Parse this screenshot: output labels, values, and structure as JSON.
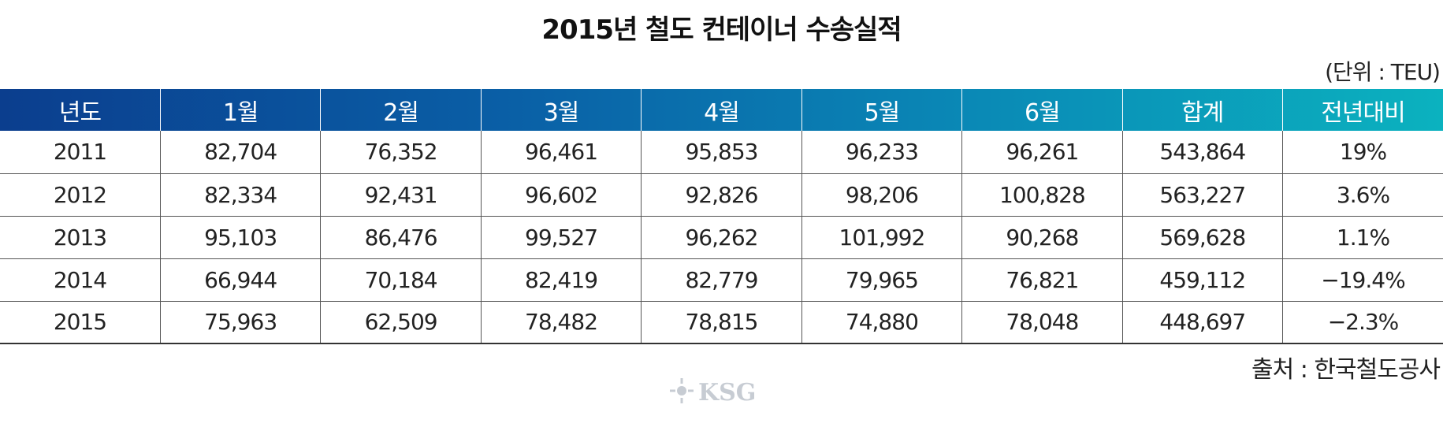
{
  "title": "2015년 철도 컨테이너 수송실적",
  "unit": "(단위 : TEU)",
  "source": "출처 : 한국철도공사",
  "watermark_text": "KSG",
  "colors": {
    "header_start": "#0b3e8e",
    "header_end": "#0bb2bf",
    "header_text": "#ffffff",
    "grid_line": "#555555"
  },
  "chart_data": {
    "type": "table",
    "title": "2015년 철도 컨테이너 수송실적",
    "columns": [
      "년도",
      "1월",
      "2월",
      "3월",
      "4월",
      "5월",
      "6월",
      "합계",
      "전년대비"
    ],
    "rows": [
      [
        "2011",
        "82,704",
        "76,352",
        "96,461",
        "95,853",
        "96,233",
        "96,261",
        "543,864",
        "19%"
      ],
      [
        "2012",
        "82,334",
        "92,431",
        "96,602",
        "92,826",
        "98,206",
        "100,828",
        "563,227",
        "3.6%"
      ],
      [
        "2013",
        "95,103",
        "86,476",
        "99,527",
        "96,262",
        "101,992",
        "90,268",
        "569,628",
        "1.1%"
      ],
      [
        "2014",
        "66,944",
        "70,184",
        "82,419",
        "82,779",
        "79,965",
        "76,821",
        "459,112",
        "−19.4%"
      ],
      [
        "2015",
        "75,963",
        "62,509",
        "78,482",
        "78,815",
        "74,880",
        "78,048",
        "448,697",
        "−2.3%"
      ]
    ]
  }
}
